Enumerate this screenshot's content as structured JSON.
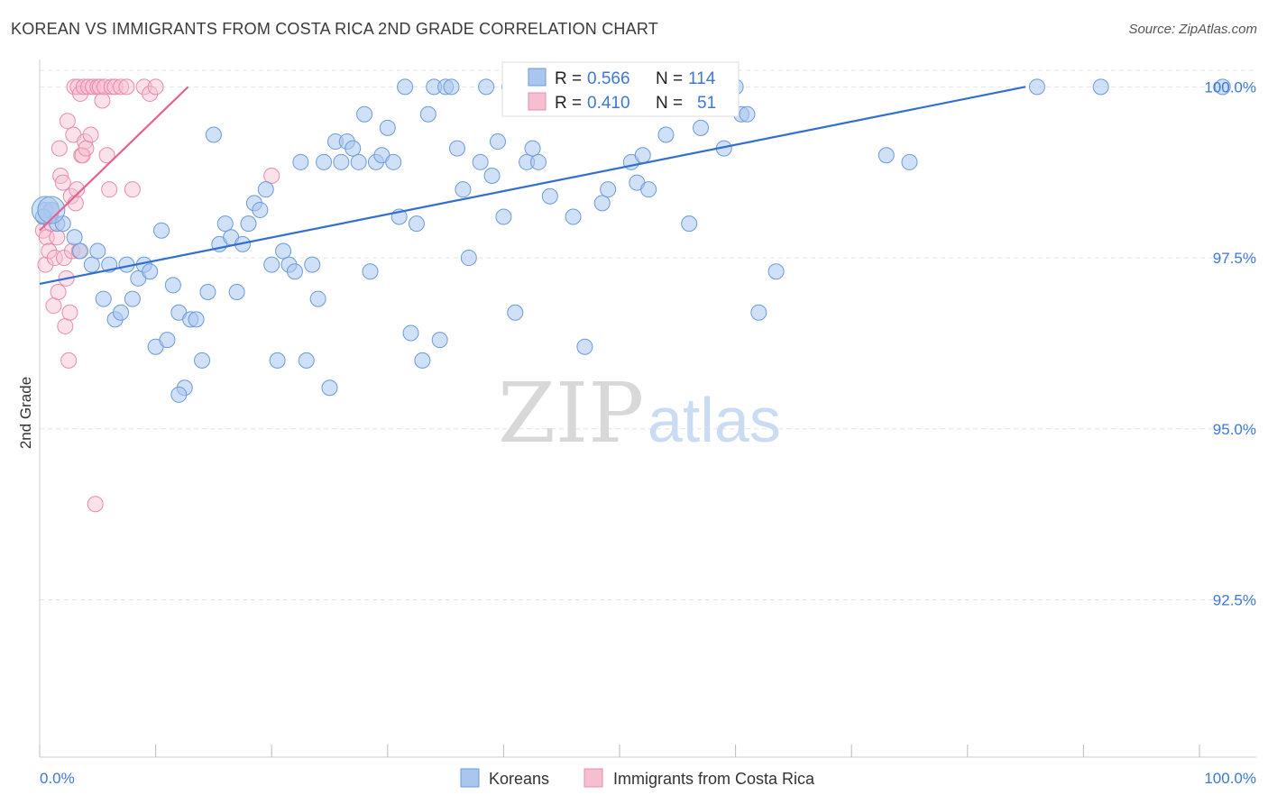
{
  "title": "KOREAN VS IMMIGRANTS FROM COSTA RICA 2ND GRADE CORRELATION CHART",
  "source": "Source: ZipAtlas.com",
  "watermark": {
    "part1": "ZIP",
    "part2": "atlas"
  },
  "colors": {
    "blue_fill": "#a9c6ee",
    "blue_stroke": "#6b9bdb",
    "blue_line": "#2f6fcf",
    "pink_fill": "#f6bfd0",
    "pink_stroke": "#e98cab",
    "pink_line": "#e8608c",
    "tick_text": "#3c78d8",
    "grid": "#e4e4e4"
  },
  "stats": [
    {
      "r_label": "R = ",
      "r_value": "0.566",
      "n_label": "N = ",
      "n_value": "114",
      "series": "blue"
    },
    {
      "r_label": "R = ",
      "r_value": "0.410",
      "n_label": "N = ",
      "n_value": "51",
      "series": "pink"
    }
  ],
  "chart_data": {
    "type": "scatter",
    "title": "KOREAN VS IMMIGRANTS FROM COSTA RICA 2ND GRADE CORRELATION CHART",
    "xlabel": "",
    "ylabel": "2nd Grade",
    "xlim": [
      0,
      100
    ],
    "ylim": [
      90.2,
      100.4
    ],
    "x_tick_labels": {
      "min": "0.0%",
      "max": "100.0%"
    },
    "y_ticks": [
      {
        "value": 100.0,
        "label": "100.0%"
      },
      {
        "value": 97.5,
        "label": "97.5%"
      },
      {
        "value": 95.0,
        "label": "95.0%"
      },
      {
        "value": 92.5,
        "label": "92.5%"
      }
    ],
    "legend_position": "bottom-center",
    "grid": true,
    "series": [
      {
        "name": "Koreans",
        "color": "#a9c6ee",
        "trend": {
          "x": [
            0,
            85
          ],
          "y": [
            97.12,
            100.0
          ]
        },
        "points": [
          [
            0.5,
            98.2
          ],
          [
            1,
            98.2
          ],
          [
            1.5,
            98.0
          ],
          [
            2,
            98.0
          ],
          [
            3,
            97.8
          ],
          [
            3.5,
            97.6
          ],
          [
            4.5,
            97.4
          ],
          [
            5,
            97.6
          ],
          [
            5.5,
            96.9
          ],
          [
            6,
            97.4
          ],
          [
            6.5,
            96.6
          ],
          [
            7,
            96.7
          ],
          [
            7.5,
            97.4
          ],
          [
            8,
            96.9
          ],
          [
            8.5,
            97.2
          ],
          [
            9,
            97.4
          ],
          [
            9.5,
            97.3
          ],
          [
            10,
            96.2
          ],
          [
            10.5,
            97.9
          ],
          [
            11,
            96.3
          ],
          [
            11.5,
            97.1
          ],
          [
            12,
            96.7
          ],
          [
            12.5,
            95.6
          ],
          [
            12,
            95.5
          ],
          [
            13,
            96.6
          ],
          [
            13.5,
            96.6
          ],
          [
            14,
            96.0
          ],
          [
            14.5,
            97.0
          ],
          [
            15,
            99.3
          ],
          [
            15.5,
            97.7
          ],
          [
            16,
            98.0
          ],
          [
            16.5,
            97.8
          ],
          [
            17,
            97.0
          ],
          [
            17.5,
            97.7
          ],
          [
            18,
            98.0
          ],
          [
            18.5,
            98.3
          ],
          [
            19,
            98.2
          ],
          [
            19.5,
            98.5
          ],
          [
            20,
            97.4
          ],
          [
            20.5,
            96.0
          ],
          [
            21,
            97.6
          ],
          [
            21.5,
            97.4
          ],
          [
            22,
            97.3
          ],
          [
            22.5,
            98.9
          ],
          [
            23,
            96.0
          ],
          [
            23.5,
            97.4
          ],
          [
            24,
            96.9
          ],
          [
            24.5,
            98.9
          ],
          [
            25,
            95.6
          ],
          [
            25.5,
            99.2
          ],
          [
            26,
            98.9
          ],
          [
            26.5,
            99.2
          ],
          [
            27,
            99.1
          ],
          [
            27.5,
            98.9
          ],
          [
            28,
            99.6
          ],
          [
            28.5,
            97.3
          ],
          [
            29,
            98.9
          ],
          [
            29.5,
            99.0
          ],
          [
            30,
            99.4
          ],
          [
            30.5,
            98.9
          ],
          [
            31,
            98.1
          ],
          [
            31.5,
            100.0
          ],
          [
            32,
            96.4
          ],
          [
            32.5,
            98.0
          ],
          [
            33,
            96.0
          ],
          [
            33.5,
            99.6
          ],
          [
            34,
            100.0
          ],
          [
            34.5,
            96.3
          ],
          [
            35,
            100.0
          ],
          [
            35.5,
            100.0
          ],
          [
            36,
            99.1
          ],
          [
            36.5,
            98.5
          ],
          [
            37,
            97.5
          ],
          [
            38,
            98.9
          ],
          [
            38.5,
            100.0
          ],
          [
            39,
            98.7
          ],
          [
            39.5,
            99.2
          ],
          [
            40,
            98.1
          ],
          [
            40.5,
            100.0
          ],
          [
            41,
            96.7
          ],
          [
            41.5,
            100.0
          ],
          [
            42,
            98.9
          ],
          [
            42.5,
            99.1
          ],
          [
            43,
            98.9
          ],
          [
            44,
            98.4
          ],
          [
            44.5,
            100.0
          ],
          [
            46,
            98.1
          ],
          [
            47,
            96.2
          ],
          [
            48,
            100.0
          ],
          [
            48.5,
            98.3
          ],
          [
            49,
            98.5
          ],
          [
            50,
            99.9
          ],
          [
            51,
            98.9
          ],
          [
            51.5,
            98.6
          ],
          [
            52,
            99.0
          ],
          [
            52.5,
            98.5
          ],
          [
            53,
            100.0
          ],
          [
            54,
            99.3
          ],
          [
            55,
            100.0
          ],
          [
            56,
            98.0
          ],
          [
            57,
            99.4
          ],
          [
            58,
            100.0
          ],
          [
            59,
            99.1
          ],
          [
            60,
            100.0
          ],
          [
            60.5,
            99.6
          ],
          [
            61,
            99.6
          ],
          [
            62,
            96.7
          ],
          [
            63.5,
            97.3
          ],
          [
            73,
            99.0
          ],
          [
            75,
            98.9
          ],
          [
            86,
            100.0
          ],
          [
            91.5,
            100.0
          ],
          [
            102,
            100.0
          ],
          [
            0.3,
            98.1
          ]
        ],
        "big_points": [
          [
            0.5,
            98.2
          ],
          [
            1,
            98.2
          ]
        ]
      },
      {
        "name": "Immigrants from Costa Rica",
        "color": "#f6bfd0",
        "trend": {
          "x": [
            0,
            12.8
          ],
          "y": [
            97.9,
            100.0
          ]
        },
        "points": [
          [
            0.3,
            97.9
          ],
          [
            0.5,
            97.4
          ],
          [
            0.6,
            97.8
          ],
          [
            0.8,
            97.6
          ],
          [
            1,
            98.0
          ],
          [
            1.2,
            96.8
          ],
          [
            1.3,
            97.5
          ],
          [
            1.5,
            97.8
          ],
          [
            1.6,
            97.0
          ],
          [
            1.7,
            99.1
          ],
          [
            1.8,
            98.7
          ],
          [
            2,
            98.6
          ],
          [
            2.1,
            97.5
          ],
          [
            2.2,
            96.5
          ],
          [
            2.3,
            97.2
          ],
          [
            2.4,
            99.5
          ],
          [
            2.5,
            96.0
          ],
          [
            2.6,
            96.7
          ],
          [
            2.7,
            98.4
          ],
          [
            2.8,
            97.6
          ],
          [
            2.9,
            99.3
          ],
          [
            3,
            100.0
          ],
          [
            3.1,
            98.3
          ],
          [
            3.2,
            98.5
          ],
          [
            3.3,
            100.0
          ],
          [
            3.4,
            97.6
          ],
          [
            3.5,
            99.9
          ],
          [
            3.6,
            99.0
          ],
          [
            3.7,
            99.0
          ],
          [
            3.8,
            100.0
          ],
          [
            3.9,
            99.2
          ],
          [
            4,
            99.1
          ],
          [
            4.2,
            100.0
          ],
          [
            4.4,
            99.3
          ],
          [
            4.6,
            100.0
          ],
          [
            4.8,
            93.9
          ],
          [
            5,
            100.0
          ],
          [
            5.2,
            100.0
          ],
          [
            5.4,
            99.8
          ],
          [
            5.6,
            100.0
          ],
          [
            5.8,
            99.0
          ],
          [
            6,
            98.5
          ],
          [
            6.2,
            100.0
          ],
          [
            6.5,
            100.0
          ],
          [
            7,
            100.0
          ],
          [
            7.5,
            100.0
          ],
          [
            8,
            98.5
          ],
          [
            9,
            100.0
          ],
          [
            9.5,
            99.9
          ],
          [
            10,
            100.0
          ],
          [
            20,
            98.7
          ]
        ]
      }
    ]
  },
  "legend": [
    {
      "label": "Koreans",
      "swatch": "blue"
    },
    {
      "label": "Immigrants from Costa Rica",
      "swatch": "pink"
    }
  ]
}
